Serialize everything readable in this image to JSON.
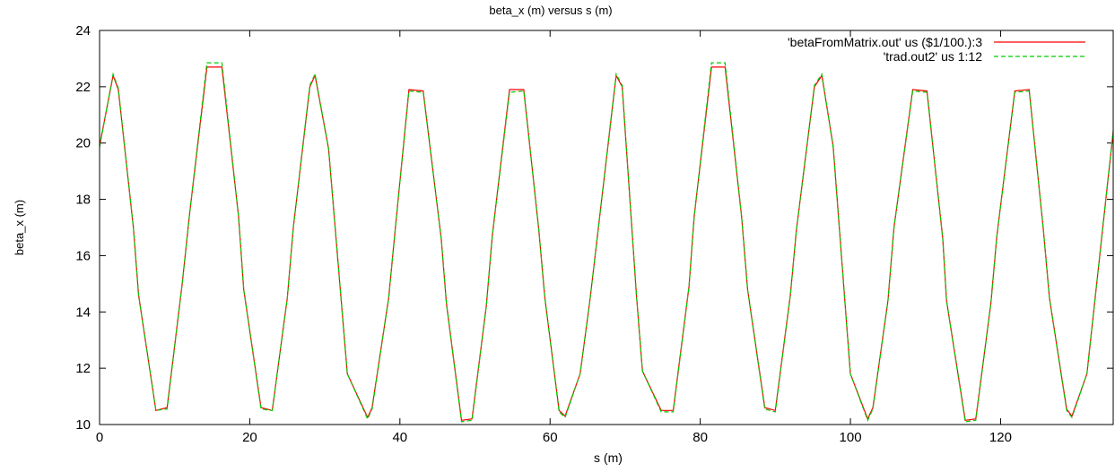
{
  "chart_data": {
    "type": "line",
    "title": "beta_x (m) versus s (m)",
    "xlabel": "s (m)",
    "ylabel": "beta_x (m)",
    "xlim": [
      0,
      135
    ],
    "ylim": [
      10,
      24
    ],
    "xticks": [
      0,
      20,
      40,
      60,
      80,
      100,
      120
    ],
    "yticks": [
      10,
      12,
      14,
      16,
      18,
      20,
      22,
      24
    ],
    "grid": false,
    "legend_position": "top-right",
    "series": [
      {
        "name": "'betaFromMatrix.out' us ($1/100.):3",
        "color": "#ff0000",
        "dash": "solid",
        "x": [
          0,
          1.8,
          2.5,
          4.5,
          5.2,
          7.5,
          9,
          11,
          12,
          14.3,
          16.3,
          18.5,
          19.2,
          21.5,
          23,
          25,
          25.8,
          28,
          28.7,
          30.5,
          33,
          35.7,
          36.3,
          38.5,
          39.4,
          41.2,
          43.1,
          45.5,
          46.2,
          48.2,
          49.6,
          51.5,
          52.3,
          54.6,
          56.5,
          58.5,
          59.3,
          61.2,
          62,
          64,
          65.3,
          68.8,
          69.6,
          71.5,
          72.3,
          74.8,
          76.4,
          78.5,
          79.2,
          81.5,
          83.3,
          85.5,
          86.3,
          88.6,
          90,
          92,
          92.8,
          95.2,
          96.2,
          97.7,
          100,
          102.3,
          103,
          105,
          105.8,
          108.3,
          110.2,
          112.3,
          112.8,
          115.3,
          116.7,
          118.7,
          119.5,
          121.9,
          123.8,
          125.7,
          126.5,
          128.8,
          129.5,
          131.5,
          135
        ],
        "y": [
          19.9,
          22.4,
          21.9,
          17.0,
          14.6,
          10.5,
          10.6,
          15.0,
          17.5,
          22.7,
          22.7,
          17.4,
          14.8,
          10.6,
          10.5,
          14.5,
          17.0,
          22.0,
          22.4,
          19.8,
          11.8,
          10.25,
          10.6,
          14.5,
          17.0,
          21.9,
          21.85,
          16.6,
          14.3,
          10.15,
          10.2,
          14.2,
          16.7,
          21.9,
          21.9,
          16.9,
          14.5,
          10.5,
          10.3,
          11.8,
          14.4,
          22.4,
          22.0,
          14.6,
          11.9,
          10.5,
          10.5,
          14.9,
          17.4,
          22.7,
          22.7,
          17.4,
          14.8,
          10.6,
          10.5,
          14.6,
          16.9,
          22.0,
          22.4,
          19.9,
          11.8,
          10.2,
          10.6,
          14.4,
          17.0,
          21.9,
          21.85,
          16.6,
          14.4,
          10.15,
          10.2,
          14.3,
          16.7,
          21.85,
          21.9,
          16.9,
          14.5,
          10.55,
          10.3,
          11.8,
          20.4
        ]
      },
      {
        "name": "'trad.out2'  us 1:12",
        "color": "#00cc00",
        "dash": "dashed",
        "x": [
          0,
          1.8,
          2.5,
          4.5,
          5.2,
          7.5,
          9,
          11,
          12,
          14.3,
          16.3,
          18.5,
          19.2,
          21.5,
          23,
          25,
          25.8,
          28,
          28.7,
          30.5,
          33,
          35.7,
          36.3,
          38.5,
          39.4,
          41.2,
          43.1,
          45.5,
          46.2,
          48.2,
          49.6,
          51.5,
          52.3,
          54.6,
          56.5,
          58.5,
          59.3,
          61.2,
          62,
          64,
          65.3,
          68.8,
          69.6,
          71.5,
          72.3,
          74.8,
          76.4,
          78.5,
          79.2,
          81.5,
          83.3,
          85.5,
          86.3,
          88.6,
          90,
          92,
          92.8,
          95.2,
          96.2,
          97.7,
          100,
          102.3,
          103,
          105,
          105.8,
          108.3,
          110.2,
          112.3,
          112.8,
          115.3,
          116.7,
          118.7,
          119.5,
          121.9,
          123.8,
          125.7,
          126.5,
          128.8,
          129.5,
          131.5,
          135
        ],
        "y": [
          19.85,
          22.45,
          21.95,
          17.0,
          14.6,
          10.5,
          10.55,
          15.0,
          17.5,
          22.85,
          22.85,
          17.4,
          14.8,
          10.55,
          10.5,
          14.5,
          17.0,
          22.05,
          22.45,
          19.8,
          11.8,
          10.2,
          10.55,
          14.5,
          17.0,
          21.85,
          21.8,
          16.6,
          14.3,
          10.1,
          10.15,
          14.2,
          16.7,
          21.8,
          21.85,
          16.9,
          14.5,
          10.45,
          10.25,
          11.8,
          14.4,
          22.45,
          22.05,
          14.6,
          11.9,
          10.45,
          10.45,
          14.9,
          17.4,
          22.85,
          22.85,
          17.4,
          14.8,
          10.55,
          10.45,
          14.6,
          16.9,
          22.05,
          22.45,
          19.85,
          11.8,
          10.15,
          10.55,
          14.4,
          17.0,
          21.85,
          21.8,
          16.6,
          14.4,
          10.1,
          10.15,
          14.3,
          16.7,
          21.8,
          21.85,
          16.9,
          14.5,
          10.5,
          10.25,
          11.8,
          20.45
        ]
      }
    ]
  }
}
